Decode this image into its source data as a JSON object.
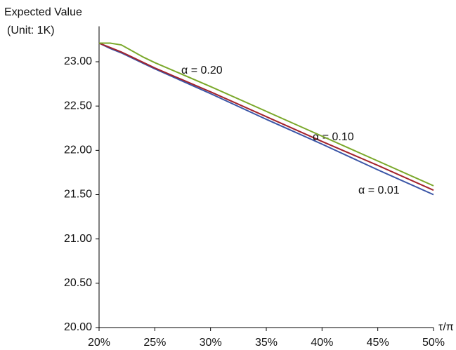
{
  "chart_data": {
    "type": "line",
    "y_label": [
      "Expected Value",
      "(Unit: 1K)"
    ],
    "x_label": "τ/π",
    "x": [
      20,
      21,
      22,
      23,
      24,
      25,
      30,
      35,
      40,
      45,
      50
    ],
    "series": [
      {
        "name": "α = 0.01",
        "color": "#3a55a6",
        "values": [
          23.21,
          23.15,
          23.1,
          23.04,
          22.98,
          22.92,
          22.64,
          22.35,
          22.07,
          21.78,
          21.5
        ]
      },
      {
        "name": "α = 0.10",
        "color": "#a3232c",
        "values": [
          23.21,
          23.16,
          23.11,
          23.05,
          22.99,
          22.93,
          22.66,
          22.38,
          22.1,
          21.83,
          21.55
        ]
      },
      {
        "name": "α = 0.20",
        "color": "#7aa82a",
        "values": [
          23.21,
          23.21,
          23.19,
          23.12,
          23.05,
          22.99,
          22.72,
          22.44,
          22.16,
          21.88,
          21.6
        ]
      }
    ],
    "xlim": [
      20,
      50
    ],
    "xticks": [
      {
        "value": 20,
        "label": "20%"
      },
      {
        "value": 25,
        "label": "25%"
      },
      {
        "value": 30,
        "label": "30%"
      },
      {
        "value": 35,
        "label": "35%"
      },
      {
        "value": 40,
        "label": "40%"
      },
      {
        "value": 45,
        "label": "45%"
      },
      {
        "value": 50,
        "label": "50%"
      }
    ],
    "ylim": [
      20,
      23.4
    ],
    "yticks": [
      {
        "value": 20,
        "label": "20.00"
      },
      {
        "value": 20.5,
        "label": "20.50"
      },
      {
        "value": 21,
        "label": "21.00"
      },
      {
        "value": 21.5,
        "label": "21.50"
      },
      {
        "value": 22,
        "label": "22.00"
      },
      {
        "value": 22.5,
        "label": "22.50"
      },
      {
        "value": 23,
        "label": "23.00"
      }
    ],
    "grid": false
  }
}
